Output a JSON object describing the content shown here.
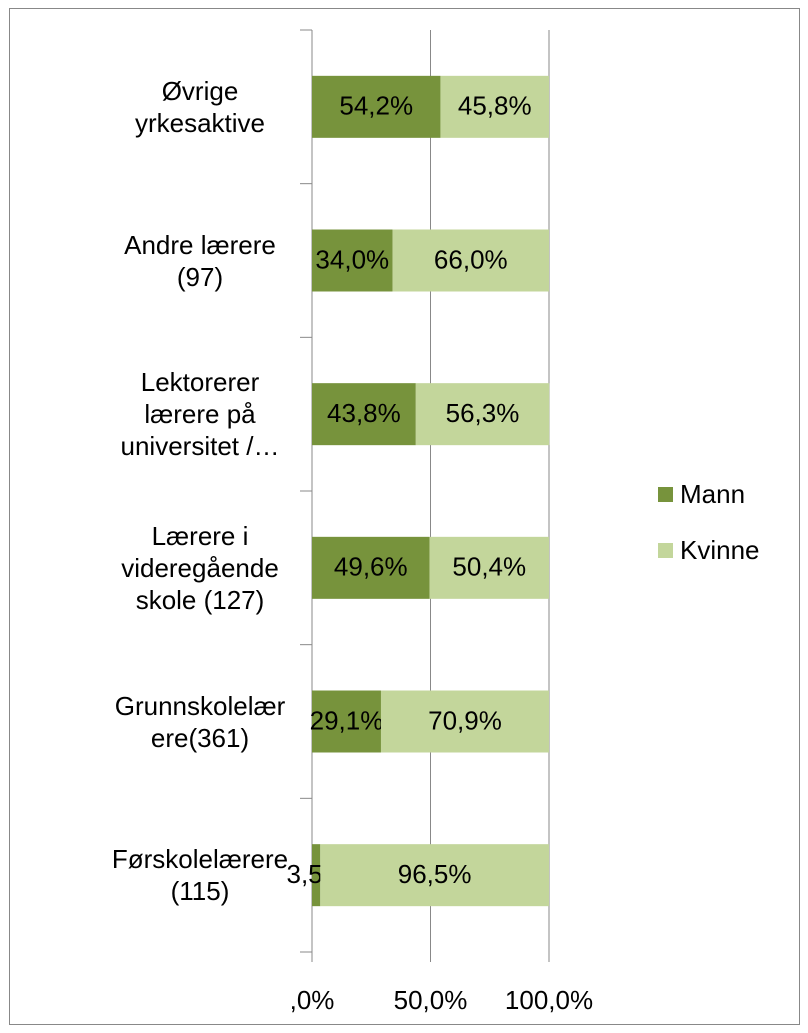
{
  "chart_data": {
    "type": "stacked-bar-horizontal",
    "categories": [
      "Øvrige\nyrkesaktive",
      "Andre lærere\n(97)",
      "Lektorerer\nlærere på\nuniversitet /…",
      "Lærere i\nvideregående\nskole (127)",
      "Grunnskolelær\nere(361)",
      "Førskolelærere\n(115)"
    ],
    "series": [
      {
        "name": "Mann",
        "color": "#77933c",
        "values": [
          54.2,
          34.0,
          43.8,
          49.6,
          29.1,
          3.5
        ],
        "value_labels": [
          "54,2%",
          "34,0%",
          "43,8%",
          "49,6%",
          "29,1%",
          "3,5%"
        ]
      },
      {
        "name": "Kvinne",
        "color": "#c3d69b",
        "values": [
          45.8,
          66.0,
          56.3,
          50.4,
          70.9,
          96.5
        ],
        "value_labels": [
          "45,8%",
          "66,0%",
          "56,3%",
          "50,4%",
          "70,9%",
          "96,5%"
        ]
      }
    ],
    "xlim": [
      0,
      100
    ],
    "xticks": [
      {
        "value": 0,
        "label": ",0%"
      },
      {
        "value": 50,
        "label": "50,0%"
      },
      {
        "value": 100,
        "label": "100,0%"
      }
    ],
    "grid": true,
    "legend": "right"
  }
}
